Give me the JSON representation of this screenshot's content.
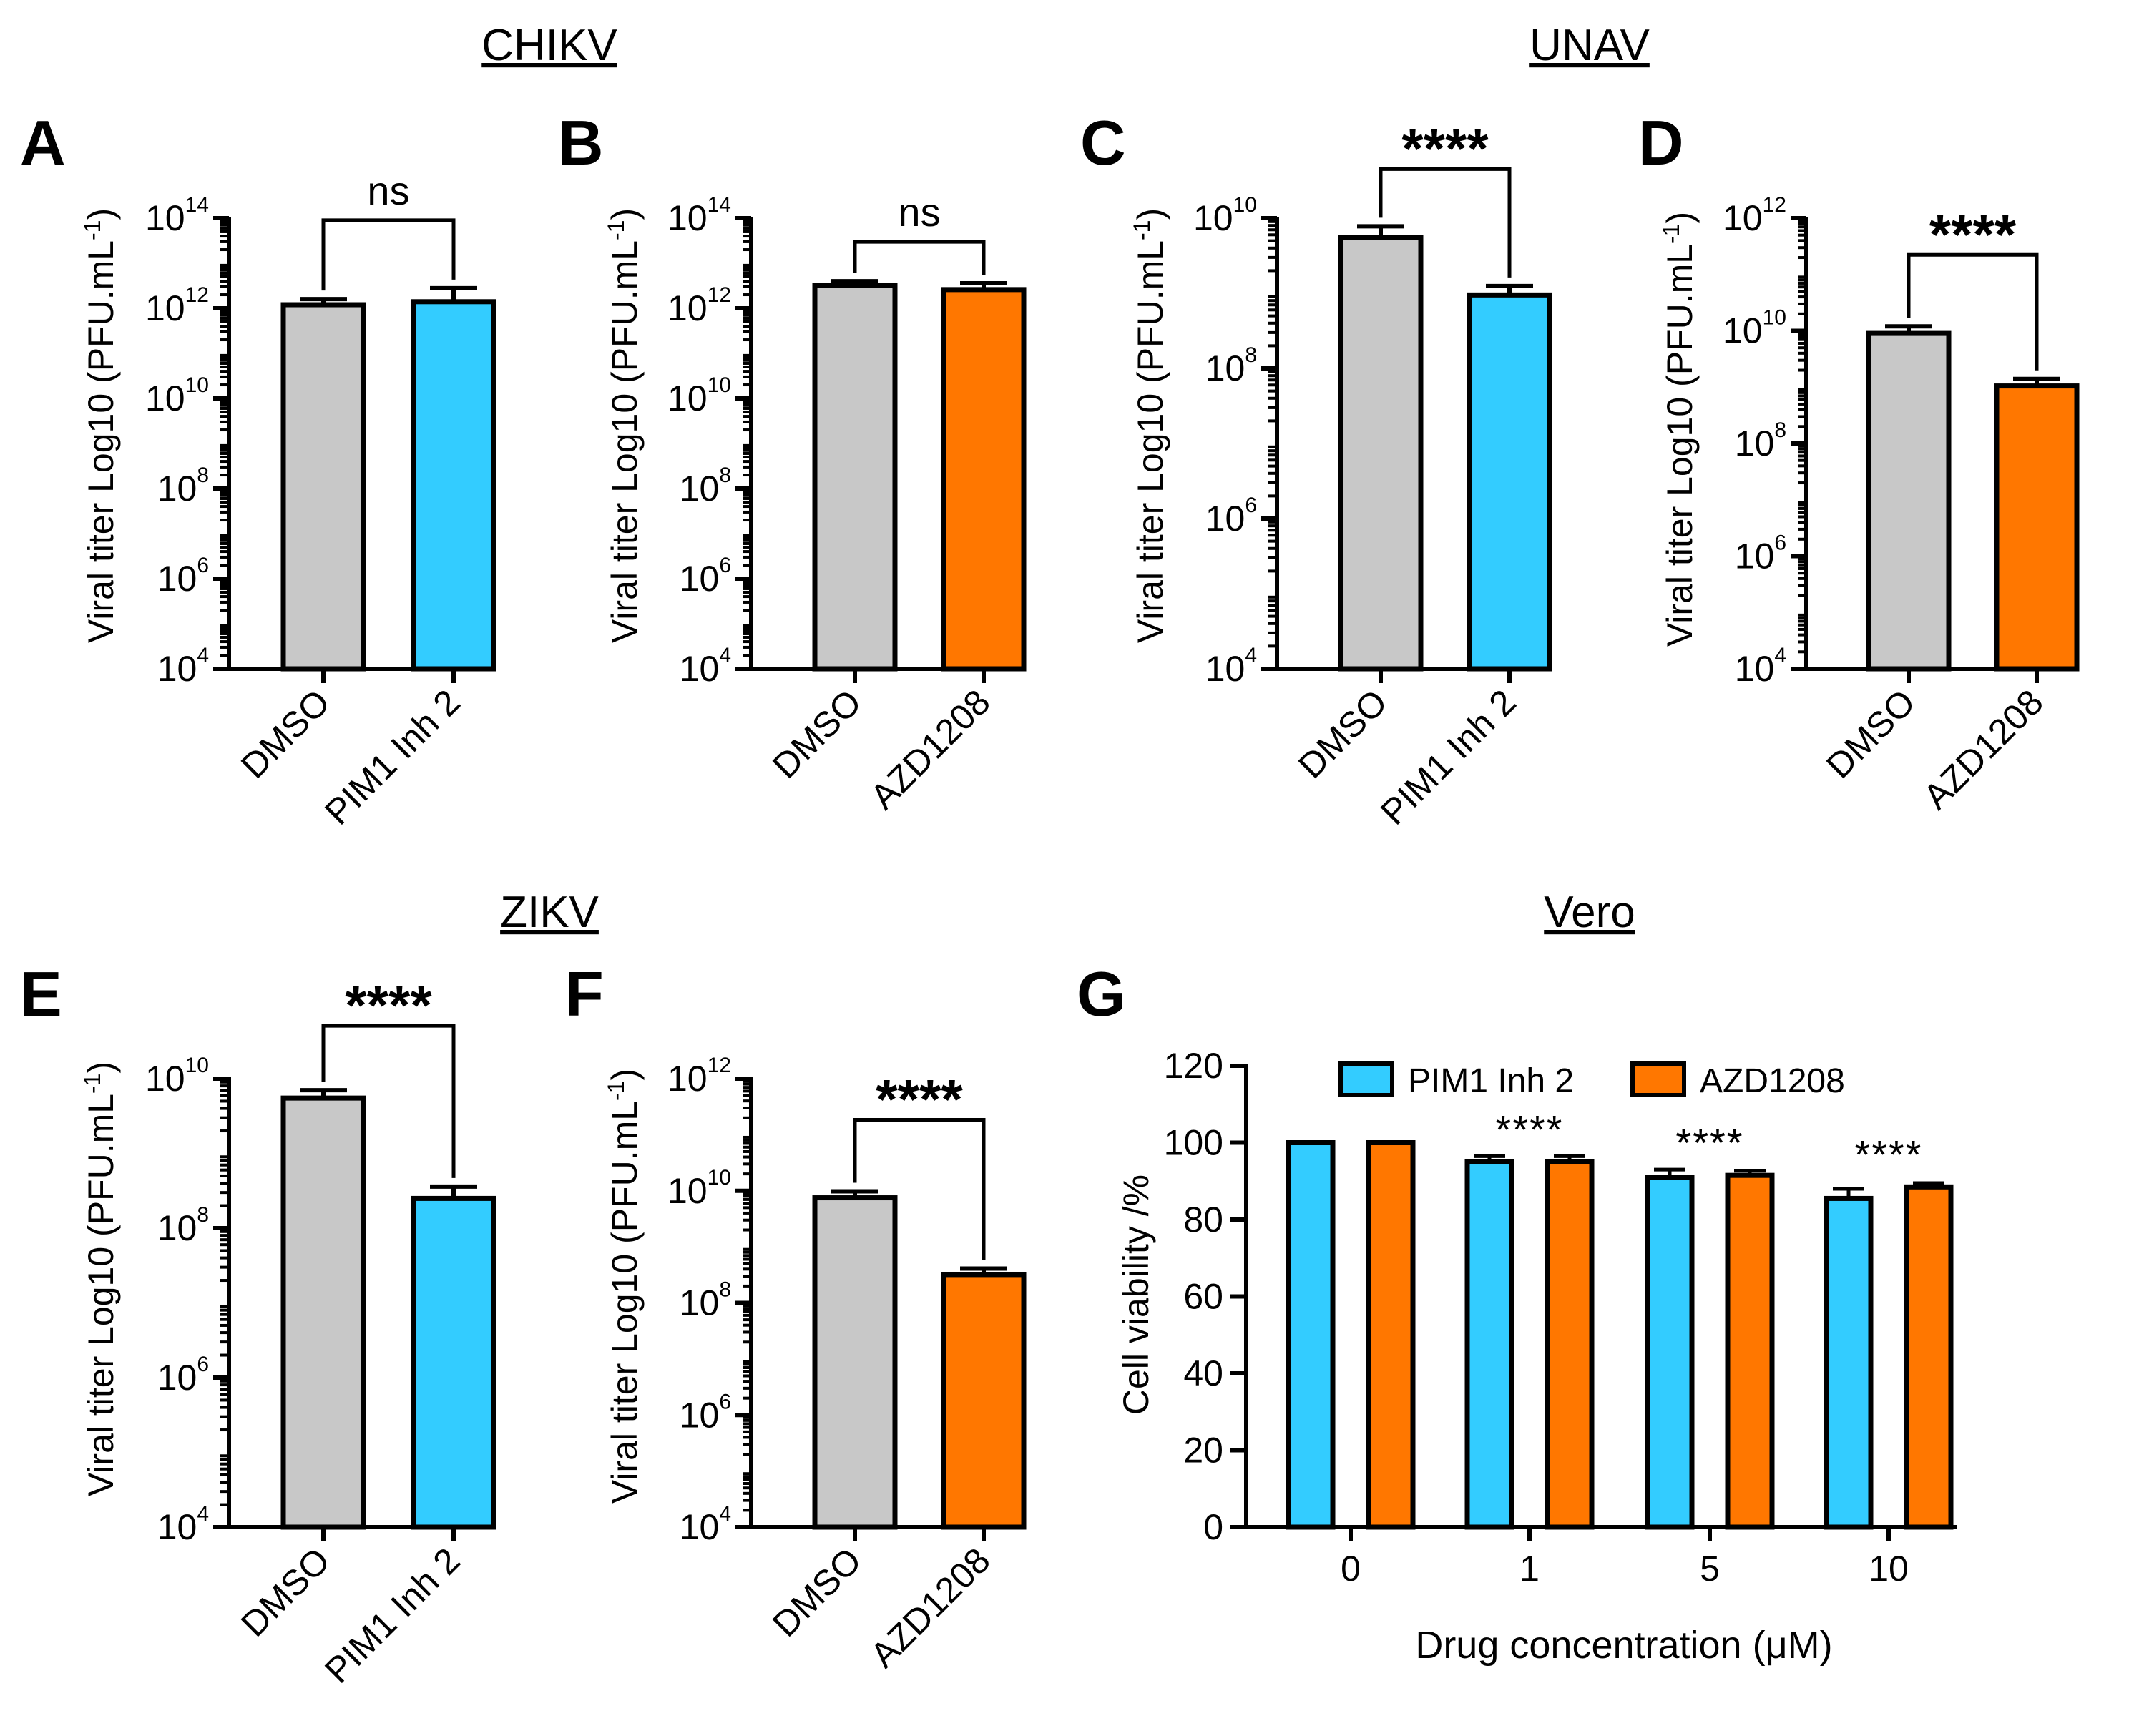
{
  "colors": {
    "dmso": "#c8c8c8",
    "pim1": "#33ccff",
    "azd": "#ff7700",
    "axis": "#000000"
  },
  "sections": [
    "CHIKV",
    "UNAV",
    "ZIKV",
    "Vero"
  ],
  "chart_data": [
    {
      "panel": "A",
      "type": "bar",
      "scale": "log10",
      "categories": [
        "DMSO",
        "PIM1 Inh 2"
      ],
      "values": [
        1200000000000.0,
        1400000000000.0
      ],
      "errors_upper": [
        1600000000000.0,
        2800000000000.0
      ],
      "ylabel": "Viral titer Log10 (PFU.mL-1)",
      "ylim": [
        10000.0,
        100000000000000.0
      ],
      "yticks": [
        "10^4",
        "10^6",
        "10^8",
        "10^10",
        "10^12",
        "10^14"
      ],
      "significance": "ns"
    },
    {
      "panel": "B",
      "type": "bar",
      "scale": "log10",
      "categories": [
        "DMSO",
        "AZD1208"
      ],
      "values": [
        3200000000000.0,
        2600000000000.0
      ],
      "errors_upper": [
        4000000000000.0,
        3600000000000.0
      ],
      "ylabel": "Viral titer Log10 (PFU.mL-1)",
      "ylim": [
        10000.0,
        100000000000000.0
      ],
      "yticks": [
        "10^4",
        "10^6",
        "10^8",
        "10^10",
        "10^12",
        "10^14"
      ],
      "significance": "ns"
    },
    {
      "panel": "C",
      "type": "bar",
      "scale": "log10",
      "categories": [
        "DMSO",
        "PIM1 Inh 2"
      ],
      "values": [
        5500000000.0,
        950000000.0
      ],
      "errors_upper": [
        7800000000.0,
        1250000000.0
      ],
      "ylabel": "Viral titer Log10 (PFU.mL-1)",
      "ylim": [
        10000.0,
        10000000000.0
      ],
      "yticks": [
        "10^4",
        "10^6",
        "10^8",
        "10^10"
      ],
      "significance": "****"
    },
    {
      "panel": "D",
      "type": "bar",
      "scale": "log10",
      "categories": [
        "DMSO",
        "AZD1208"
      ],
      "values": [
        9000000000.0,
        1050000000.0
      ],
      "errors_upper": [
        12000000000.0,
        1400000000.0
      ],
      "ylabel": "Viral titer Log10 (PFU.mL-1)",
      "ylim": [
        10000.0,
        1000000000000.0
      ],
      "yticks": [
        "10^4",
        "10^6",
        "10^8",
        "10^10",
        "10^12"
      ],
      "significance": "****"
    },
    {
      "panel": "E",
      "type": "bar",
      "scale": "log10",
      "categories": [
        "DMSO",
        "PIM1 Inh 2"
      ],
      "values": [
        5500000000.0,
        250000000.0
      ],
      "errors_upper": [
        7000000000.0,
        360000000.0
      ],
      "ylabel": "Viral titer Log10 (PFU.mL-1)",
      "ylim": [
        10000.0,
        10000000000.0
      ],
      "yticks": [
        "10^4",
        "10^6",
        "10^8",
        "10^10"
      ],
      "significance": "****"
    },
    {
      "panel": "F",
      "type": "bar",
      "scale": "log10",
      "categories": [
        "DMSO",
        "AZD1208"
      ],
      "values": [
        7500000000.0,
        320000000.0
      ],
      "errors_upper": [
        9800000000.0,
        410000000.0
      ],
      "ylabel": "Viral titer Log10 (PFU.mL-1)",
      "ylim": [
        10000.0,
        1000000000000.0
      ],
      "yticks": [
        "10^4",
        "10^6",
        "10^8",
        "10^10",
        "10^12"
      ],
      "significance": "****"
    },
    {
      "panel": "G",
      "type": "bar",
      "scale": "linear",
      "categories": [
        "0",
        "1",
        "5",
        "10"
      ],
      "series": [
        {
          "name": "PIM1 Inh 2",
          "values": [
            100,
            95,
            91,
            85.5
          ],
          "errors_upper": [
            0,
            1.5,
            2.0,
            2.5
          ]
        },
        {
          "name": "AZD1208",
          "values": [
            100,
            95,
            91.5,
            88.5
          ],
          "errors_upper": [
            0,
            1.5,
            1.2,
            1.0
          ]
        }
      ],
      "ylabel": "Cell viability /%",
      "xlabel": "Drug concentration (μM)",
      "ylim": [
        0,
        120
      ],
      "yticks": [
        "0",
        "20",
        "40",
        "60",
        "80",
        "100",
        "120"
      ],
      "significance": [
        "",
        "****",
        "****",
        "****"
      ],
      "legend": "top"
    }
  ]
}
